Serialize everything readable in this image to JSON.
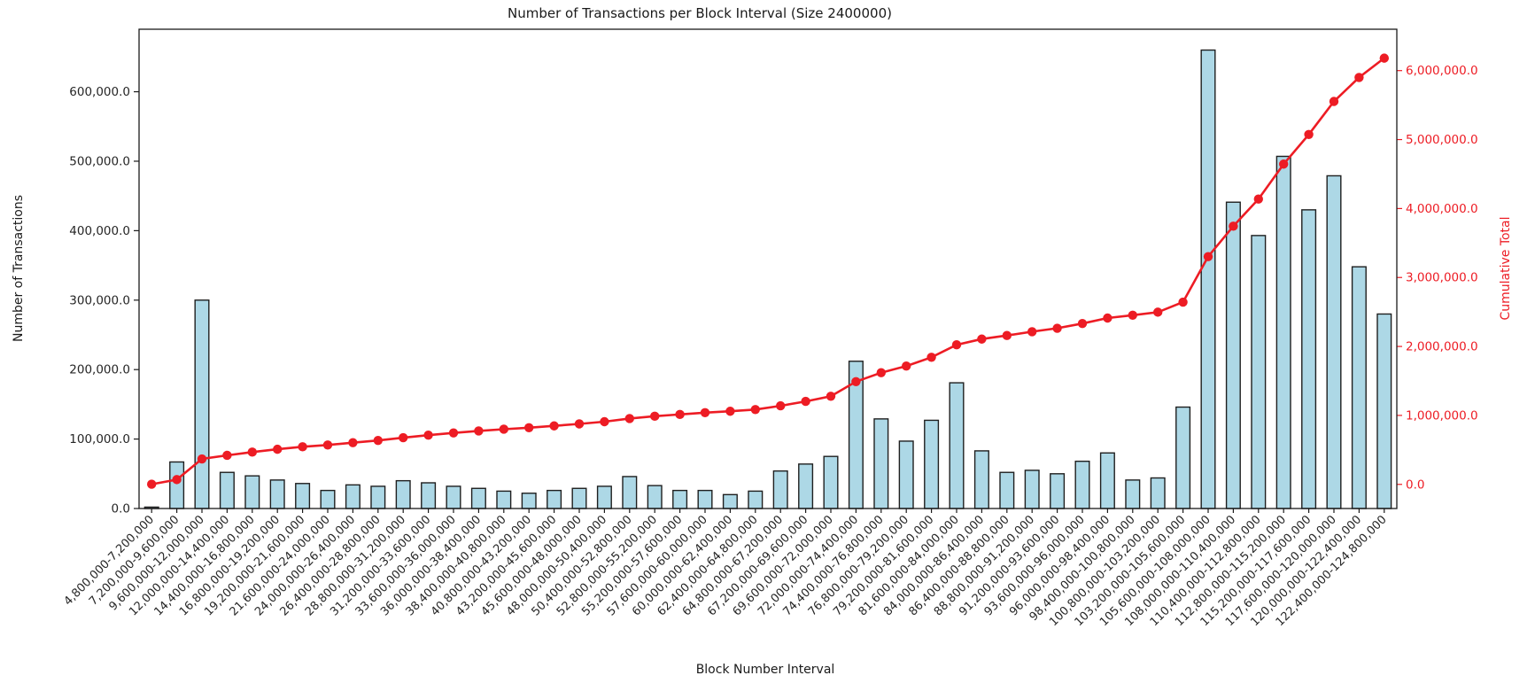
{
  "figure": {
    "background": "#ffffff",
    "plot_background": "#ffffff"
  },
  "chart_data": {
    "type": "bar",
    "title": "Number of Transactions per Block Interval (Size 2400000)",
    "xlabel": "Block Number Interval",
    "ylabel_left": "Number of Transactions",
    "ylabel_right": "Cumulative Total",
    "grid": false,
    "legend": "none",
    "colors": {
      "bar_fill": "#ADD8E6",
      "bar_edge": "#1f1f1f",
      "line": "#ED1C24",
      "axis_text": "#262626",
      "spine": "#1a1a1a"
    },
    "categories": [
      "4,800,000-7,200,000",
      "7,200,000-9,600,000",
      "9,600,000-12,000,000",
      "12,000,000-14,400,000",
      "14,400,000-16,800,000",
      "16,800,000-19,200,000",
      "19,200,000-21,600,000",
      "21,600,000-24,000,000",
      "24,000,000-26,400,000",
      "26,400,000-28,800,000",
      "28,800,000-31,200,000",
      "31,200,000-33,600,000",
      "33,600,000-36,000,000",
      "36,000,000-38,400,000",
      "38,400,000-40,800,000",
      "40,800,000-43,200,000",
      "43,200,000-45,600,000",
      "45,600,000-48,000,000",
      "48,000,000-50,400,000",
      "50,400,000-52,800,000",
      "52,800,000-55,200,000",
      "55,200,000-57,600,000",
      "57,600,000-60,000,000",
      "60,000,000-62,400,000",
      "62,400,000-64,800,000",
      "64,800,000-67,200,000",
      "67,200,000-69,600,000",
      "69,600,000-72,000,000",
      "72,000,000-74,400,000",
      "74,400,000-76,800,000",
      "76,800,000-79,200,000",
      "79,200,000-81,600,000",
      "81,600,000-84,000,000",
      "84,000,000-86,400,000",
      "86,400,000-88,800,000",
      "88,800,000-91,200,000",
      "91,200,000-93,600,000",
      "93,600,000-96,000,000",
      "96,000,000-98,400,000",
      "98,400,000-100,800,000",
      "100,800,000-103,200,000",
      "103,200,000-105,600,000",
      "105,600,000-108,000,000",
      "108,000,000-110,400,000",
      "110,400,000-112,800,000",
      "112,800,000-115,200,000",
      "115,200,000-117,600,000",
      "117,600,000-120,000,000",
      "120,000,000-122,400,000",
      "122,400,000-124,800,000"
    ],
    "series": [
      {
        "name": "Number of Transactions",
        "type": "bar",
        "values": [
          2000,
          67000,
          300000,
          52000,
          47000,
          41000,
          36000,
          26000,
          34000,
          32000,
          40000,
          37000,
          32000,
          29000,
          25000,
          22000,
          26000,
          29000,
          32000,
          46000,
          33000,
          26000,
          26000,
          20000,
          25000,
          54000,
          64000,
          75000,
          212000,
          129000,
          97000,
          127000,
          181000,
          83000,
          52000,
          55000,
          50000,
          68000,
          80000,
          41000,
          44000,
          146000,
          660000,
          441000,
          393000,
          507000,
          430000,
          479000,
          348000,
          280000
        ]
      },
      {
        "name": "Cumulative Total",
        "type": "line",
        "values": [
          2000,
          69000,
          369000,
          421000,
          468000,
          509000,
          545000,
          571000,
          605000,
          637000,
          677000,
          714000,
          746000,
          775000,
          800000,
          822000,
          848000,
          877000,
          909000,
          955000,
          988000,
          1014000,
          1040000,
          1060000,
          1085000,
          1139000,
          1203000,
          1278000,
          1490000,
          1619000,
          1716000,
          1843000,
          2024000,
          2107000,
          2159000,
          2214000,
          2264000,
          2332000,
          2412000,
          2453000,
          2497000,
          2643000,
          3303000,
          3744000,
          4137000,
          4644000,
          5074000,
          5553000,
          5901000,
          6181000
        ]
      }
    ],
    "left_axis": {
      "lim": [
        0,
        690000
      ],
      "ticks": [
        0,
        100000,
        200000,
        300000,
        400000,
        500000,
        600000
      ],
      "tick_labels": [
        "0.0",
        "100,000.0",
        "200,000.0",
        "300,000.0",
        "400,000.0",
        "500,000.0",
        "600,000.0"
      ]
    },
    "right_axis": {
      "lim": [
        -350000,
        6600000
      ],
      "ticks": [
        0,
        1000000,
        2000000,
        3000000,
        4000000,
        5000000,
        6000000
      ],
      "tick_labels": [
        "0.0",
        "1,000,000.0",
        "2,000,000.0",
        "3,000,000.0",
        "4,000,000.0",
        "5,000,000.0",
        "6,000,000.0"
      ]
    }
  }
}
